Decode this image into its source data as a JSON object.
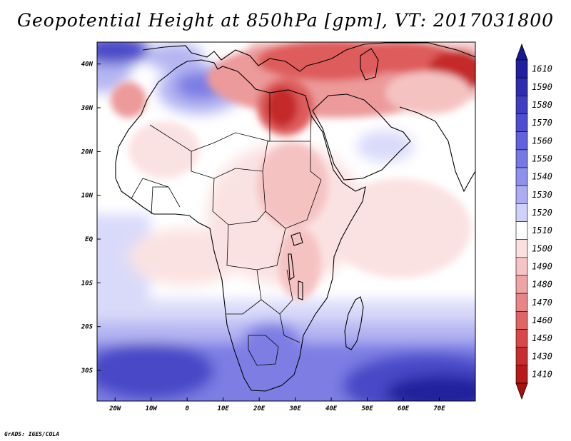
{
  "title": "Geopotential Height at 850hPa [gpm], VT: 2017031800",
  "credit": "GrADS: IGES/COLA",
  "map": {
    "lon_range": [
      -25,
      80
    ],
    "lat_range": [
      -37,
      45
    ],
    "lon_ticks": [
      {
        "value": -20,
        "label": "20W"
      },
      {
        "value": -10,
        "label": "10W"
      },
      {
        "value": 0,
        "label": "0"
      },
      {
        "value": 10,
        "label": "10E"
      },
      {
        "value": 20,
        "label": "20E"
      },
      {
        "value": 30,
        "label": "30E"
      },
      {
        "value": 40,
        "label": "40E"
      },
      {
        "value": 50,
        "label": "50E"
      },
      {
        "value": 60,
        "label": "60E"
      },
      {
        "value": 70,
        "label": "70E"
      }
    ],
    "lat_ticks": [
      {
        "value": 40,
        "label": "40N"
      },
      {
        "value": 30,
        "label": "30N"
      },
      {
        "value": 20,
        "label": "20N"
      },
      {
        "value": 10,
        "label": "10N"
      },
      {
        "value": 0,
        "label": "EQ"
      },
      {
        "value": -10,
        "label": "10S"
      },
      {
        "value": -20,
        "label": "20S"
      },
      {
        "value": -30,
        "label": "30S"
      }
    ]
  },
  "colorbar": {
    "levels": [
      {
        "label": "1610",
        "color": "#21209e"
      },
      {
        "label": "1590",
        "color": "#2f2cb0"
      },
      {
        "label": "1580",
        "color": "#3f3dc0"
      },
      {
        "label": "1570",
        "color": "#4f4ed0"
      },
      {
        "label": "1560",
        "color": "#6262dc"
      },
      {
        "label": "1550",
        "color": "#7878e4"
      },
      {
        "label": "1540",
        "color": "#8f90ec"
      },
      {
        "label": "1530",
        "color": "#acacf2"
      },
      {
        "label": "1520",
        "color": "#d0d1fa"
      },
      {
        "label": "1510",
        "color": "#ffffff"
      },
      {
        "label": "1500",
        "color": "#fbe0e0"
      },
      {
        "label": "1490",
        "color": "#f6c4c4"
      },
      {
        "label": "1480",
        "color": "#efa4a4"
      },
      {
        "label": "1470",
        "color": "#e88686"
      },
      {
        "label": "1460",
        "color": "#e06666"
      },
      {
        "label": "1450",
        "color": "#d84848"
      },
      {
        "label": "1430",
        "color": "#c82c2c"
      },
      {
        "label": "1410",
        "color": "#b81a1a"
      }
    ],
    "top_arrow_color": "#1a1890",
    "bottom_arrow_color": "#a81010"
  },
  "field_colors": {
    "deep_blue": "#22209f",
    "blue": "#4a48c8",
    "mid_blue": "#7d7de4",
    "light_blue": "#b5b6f2",
    "pale_blue": "#d9daf9",
    "white": "#ffffff",
    "pale_red": "#fbe2e2",
    "light_red": "#f5c2c2",
    "mid_red": "#ec9a9a",
    "red": "#de5c5c",
    "deep_red": "#c42c2c"
  }
}
